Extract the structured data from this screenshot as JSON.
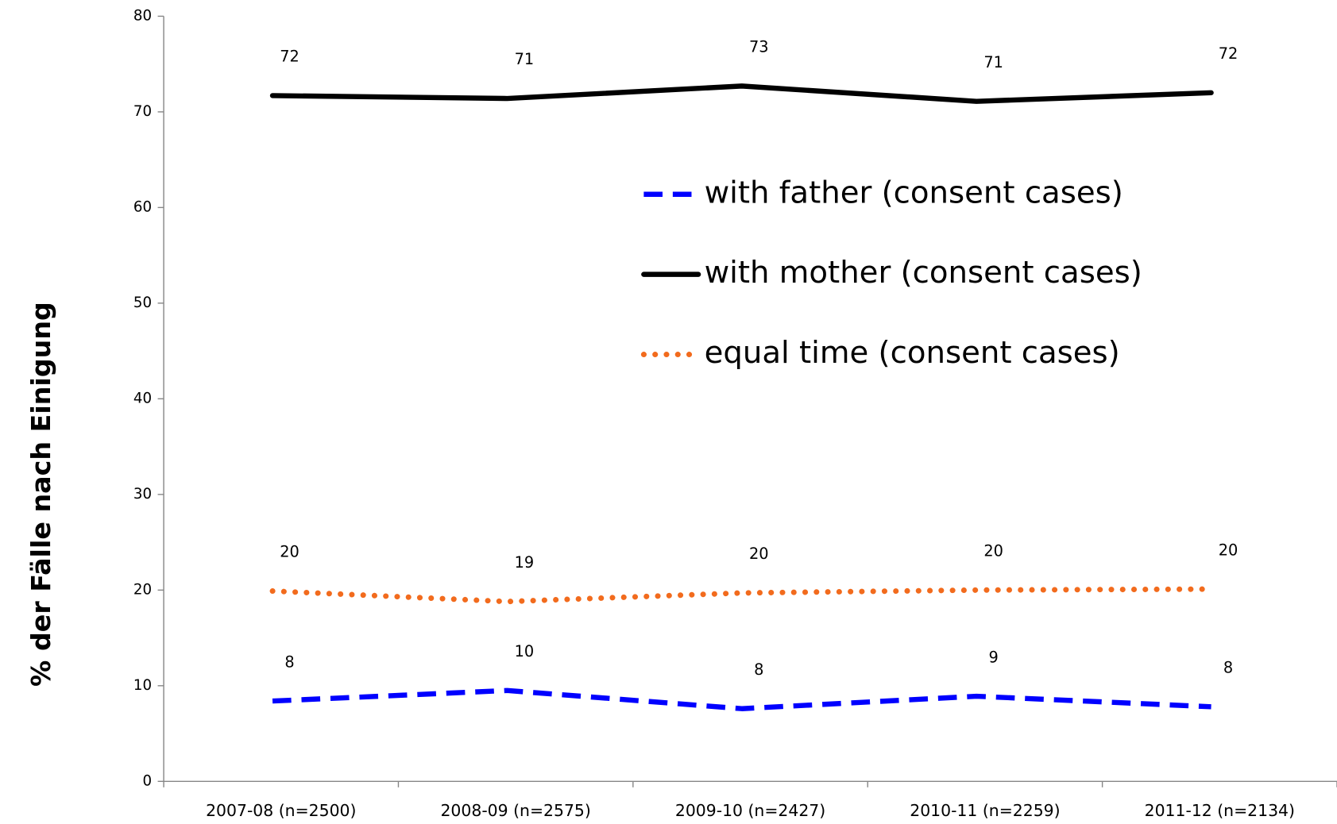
{
  "chart_data": {
    "type": "line",
    "y_label": "% der Fälle nach Einigung",
    "categories": [
      "2007-08 (n=2500)",
      "2008-09 (n=2575)",
      "2009-10 (n=2427)",
      "2010-11 (n=2259)",
      "2011-12 (n=2134)"
    ],
    "ylim": [
      0,
      80
    ],
    "yticks": [
      0,
      10,
      20,
      30,
      40,
      50,
      60,
      70,
      80
    ],
    "grid": false,
    "legend": "top-center",
    "series": [
      {
        "name": "with father (consent cases)",
        "color": "#0000ff",
        "dash": "dashed",
        "values": [
          8.4,
          9.5,
          7.6,
          8.9,
          7.8
        ],
        "value_labels": [
          "8",
          "10",
          "8",
          "9",
          "8"
        ]
      },
      {
        "name": "with mother (consent cases)",
        "color": "#000000",
        "dash": "solid",
        "values": [
          71.7,
          71.4,
          72.7,
          71.1,
          72.0
        ],
        "value_labels": [
          "72",
          "71",
          "73",
          "71",
          "72"
        ]
      },
      {
        "name": "equal time (consent cases)",
        "color": "#f26b1d",
        "dash": "dotted",
        "values": [
          19.9,
          18.8,
          19.7,
          20.0,
          20.1
        ],
        "value_labels": [
          "20",
          "19",
          "20",
          "20",
          "20"
        ]
      }
    ]
  }
}
